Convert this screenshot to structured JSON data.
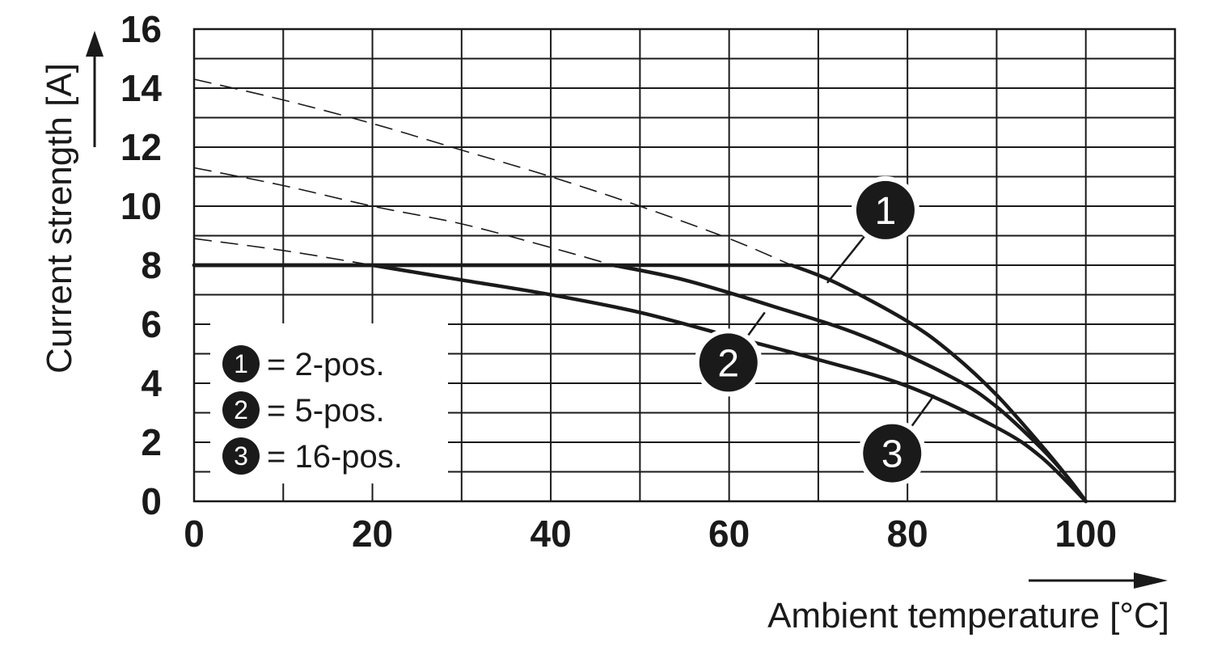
{
  "chart_data": {
    "type": "line",
    "xlabel": "Ambient temperature [°C]",
    "ylabel": "Current strength [A]",
    "xlim": [
      0,
      110
    ],
    "ylim": [
      0,
      16
    ],
    "x_ticks": [
      0,
      20,
      40,
      60,
      80,
      100
    ],
    "y_ticks": [
      0,
      2,
      4,
      6,
      8,
      10,
      12,
      14,
      16
    ],
    "x_tick_labels": [
      "0",
      "20",
      "40",
      "60",
      "80",
      "100"
    ],
    "y_tick_labels": [
      "0",
      "2",
      "4",
      "6",
      "8",
      "10",
      "12",
      "14",
      "16"
    ],
    "grid": true,
    "legend_position": "bottom-left",
    "legend": [
      {
        "marker": "1",
        "text": "= 2-pos."
      },
      {
        "marker": "2",
        "text": "= 5-pos."
      },
      {
        "marker": "3",
        "text": "= 16-pos."
      }
    ],
    "series": [
      {
        "marker": "1",
        "solid": [
          [
            0,
            8
          ],
          [
            67,
            8
          ],
          [
            72,
            7.4
          ],
          [
            80,
            6.1
          ],
          [
            85,
            5.0
          ],
          [
            90,
            3.6
          ],
          [
            95,
            1.9
          ],
          [
            98,
            0.8
          ],
          [
            100,
            0
          ]
        ],
        "dashed": [
          [
            0,
            14.3
          ],
          [
            10,
            13.6
          ],
          [
            20,
            12.8
          ],
          [
            30,
            11.9
          ],
          [
            40,
            11.0
          ],
          [
            50,
            10.0
          ],
          [
            60,
            8.9
          ],
          [
            67,
            8.0
          ]
        ]
      },
      {
        "marker": "2",
        "solid": [
          [
            0,
            8
          ],
          [
            47,
            8
          ],
          [
            55,
            7.5
          ],
          [
            65,
            6.6
          ],
          [
            75,
            5.6
          ],
          [
            85,
            4.2
          ],
          [
            90,
            3.2
          ],
          [
            95,
            1.8
          ],
          [
            98,
            0.8
          ],
          [
            100,
            0
          ]
        ],
        "dashed": [
          [
            0,
            11.3
          ],
          [
            10,
            10.7
          ],
          [
            20,
            10.0
          ],
          [
            30,
            9.4
          ],
          [
            40,
            8.6
          ],
          [
            47,
            8.0
          ]
        ]
      },
      {
        "marker": "3",
        "solid": [
          [
            0,
            8
          ],
          [
            20,
            8
          ],
          [
            30,
            7.5
          ],
          [
            40,
            7.0
          ],
          [
            50,
            6.4
          ],
          [
            60,
            5.6
          ],
          [
            70,
            4.8
          ],
          [
            80,
            3.9
          ],
          [
            90,
            2.5
          ],
          [
            95,
            1.5
          ],
          [
            100,
            0
          ]
        ],
        "dashed": [
          [
            0,
            8.9
          ],
          [
            10,
            8.5
          ],
          [
            20,
            8.0
          ]
        ]
      }
    ],
    "callouts": [
      {
        "marker": "1",
        "x": 71,
        "y": 7.4
      },
      {
        "marker": "2",
        "x": 64,
        "y": 6.4
      },
      {
        "marker": "3",
        "x": 83,
        "y": 3.6
      }
    ]
  }
}
